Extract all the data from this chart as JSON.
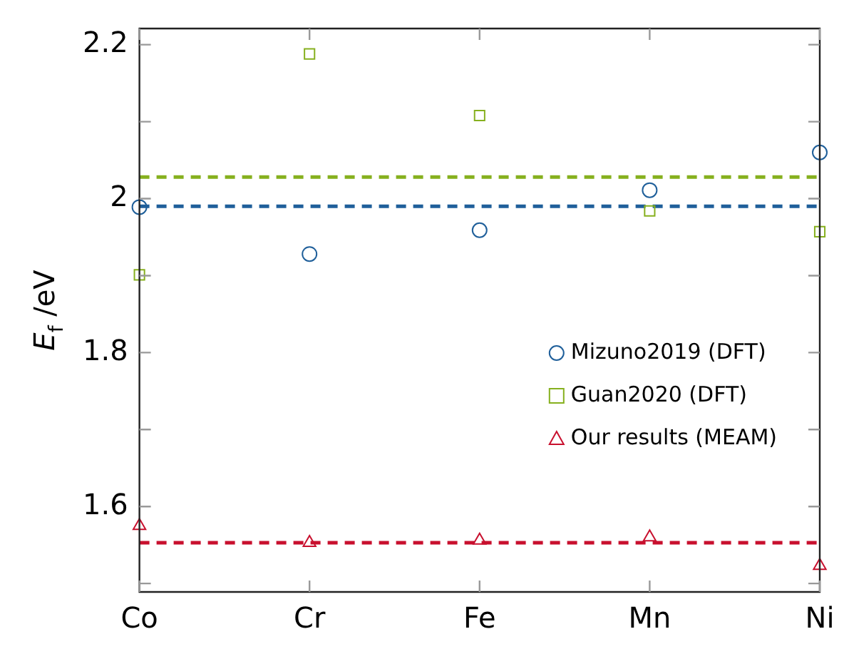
{
  "chart_data": {
    "type": "scatter",
    "ylabel": "E$_{f}$ /eV",
    "categories": [
      "Co",
      "Cr",
      "Fe",
      "Mn",
      "Ni"
    ],
    "series": [
      {
        "name": "Mizuno2019 (DFT)",
        "color": "#1f5f9a",
        "marker": "circle",
        "values": [
          1.989,
          1.928,
          1.959,
          2.011,
          2.06
        ]
      },
      {
        "name": "Guan2020 (DFT)",
        "color": "#86b01e",
        "marker": "square",
        "values": [
          1.901,
          2.188,
          2.108,
          1.984,
          1.957
        ]
      },
      {
        "name": "Our results (MEAM)",
        "color": "#c8102e",
        "marker": "triangle",
        "values": [
          1.575,
          1.553,
          1.556,
          1.56,
          1.523
        ]
      }
    ],
    "ref_lines": [
      {
        "axis": "y",
        "value": 2.028,
        "color": "#86b01e",
        "line_style": "dashed"
      },
      {
        "axis": "y",
        "value": 1.99,
        "color": "#1f5f9a",
        "line_style": "dashed"
      },
      {
        "axis": "y",
        "value": 1.553,
        "color": "#c8102e",
        "line_style": "dashed"
      }
    ],
    "ylim": [
      1.489,
      2.221
    ],
    "yticks": [
      {
        "value": 1.5,
        "label": null
      },
      1.6,
      {
        "value": 1.7,
        "label": null
      },
      1.8,
      {
        "value": 1.9,
        "label": null
      },
      2,
      {
        "value": 2.1,
        "label": null
      },
      2.2
    ],
    "grid": false,
    "legend": "right"
  }
}
